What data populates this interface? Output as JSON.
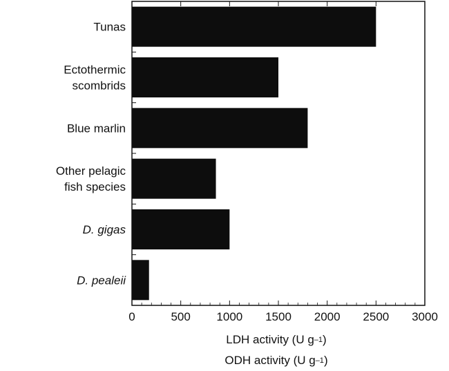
{
  "chart_data": {
    "type": "bar",
    "orientation": "horizontal",
    "categories": [
      {
        "lines": [
          "Tunas"
        ],
        "italic": false
      },
      {
        "lines": [
          "Ectothermic",
          "scombrids"
        ],
        "italic": false
      },
      {
        "lines": [
          "Blue marlin"
        ],
        "italic": false
      },
      {
        "lines": [
          "Other pelagic",
          "fish species"
        ],
        "italic": false
      },
      {
        "lines": [
          "D. gigas"
        ],
        "italic": true
      },
      {
        "lines": [
          "D. pealeii"
        ],
        "italic": true
      }
    ],
    "values": [
      2500,
      1500,
      1800,
      860,
      1000,
      175
    ],
    "xlim": [
      0,
      3000
    ],
    "x_ticks": [
      0,
      500,
      1000,
      1500,
      2000,
      2500,
      3000
    ],
    "x_tick_labels": [
      "0",
      "500",
      "1000",
      "1500",
      "2000",
      "2500",
      "3000"
    ],
    "xlabel_1": {
      "text": "LDH activity (U g",
      "sup": "–1",
      "tail": ")"
    },
    "xlabel_2": {
      "text": "ODH activity (U g",
      "sup": "–1",
      "tail": ")"
    },
    "bar_color": "#0d0d0d",
    "grid": false
  }
}
